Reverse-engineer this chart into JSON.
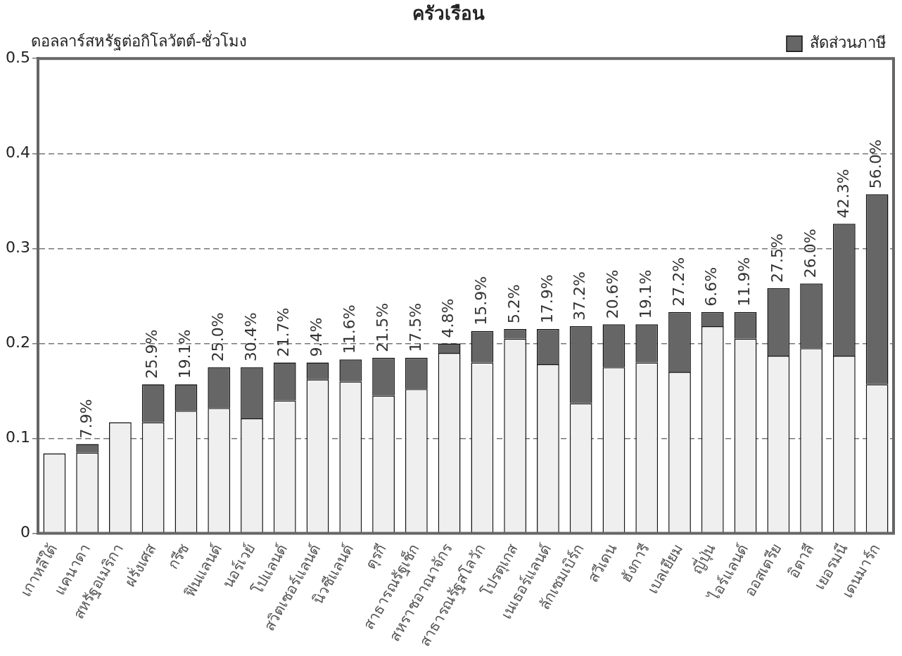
{
  "chart_data": {
    "type": "bar",
    "title": "ครัวเรือน",
    "ylabel": "ดอลลาร์สหรัฐต่อกิโลวัตต์-ชั่วโมง",
    "categories": [
      "เกาหลีใต้",
      "แคนาดา",
      "สหรัฐอเมริกา",
      "ฝรั่งเศส",
      "กรีซ",
      "ฟินแลนด์",
      "นอร์เวย์",
      "โปแลนด์",
      "สวิตเซอร์แลนด์",
      "นิวซีแลนด์",
      "ตุรกี",
      "สาธารณรัฐเช็ก",
      "สหราชอาณาจักร",
      "สาธารณรัฐสโลวัก",
      "โปรตุเกส",
      "เนเธอร์แลนด์",
      "ลักเซมเบิร์ก",
      "สวีเดน",
      "ฮังการี",
      "เบลเยียม",
      "ญี่ปุ่น",
      "ไอร์แลนด์",
      "ออสเตรีย",
      "อิตาลี",
      "เยอรมนี",
      "เดนมาร์ก"
    ],
    "stacked": true,
    "series": [
      {
        "color": "#efefef",
        "values": [
          0.084,
          0.085,
          0.117,
          0.117,
          0.129,
          0.132,
          0.121,
          0.14,
          0.162,
          0.16,
          0.145,
          0.152,
          0.19,
          0.18,
          0.205,
          0.178,
          0.137,
          0.175,
          0.18,
          0.17,
          0.218,
          0.205,
          0.187,
          0.195,
          0.187,
          0.157
        ]
      },
      {
        "name": "สัดส่วนภาษี",
        "color": "#666666",
        "values": [
          null,
          0.009,
          null,
          0.04,
          0.028,
          0.043,
          0.054,
          0.04,
          0.018,
          0.023,
          0.04,
          0.033,
          0.01,
          0.033,
          0.01,
          0.037,
          0.081,
          0.045,
          0.04,
          0.063,
          0.015,
          0.028,
          0.071,
          0.068,
          0.139,
          0.2
        ]
      }
    ],
    "ylim": [
      0,
      0.5
    ],
    "yticks": [
      0,
      0.1,
      0.2,
      0.3,
      0.4,
      0.5
    ],
    "grid": "y",
    "legend": "top right",
    "annotations": [
      {
        "text": "7.9%",
        "x": "แคนาดา",
        "y": 0.094
      },
      {
        "text": "25.9%",
        "x": "ฝรั่งเศส",
        "y": 0.157
      },
      {
        "text": "19.1%",
        "x": "กรีซ",
        "y": 0.157
      },
      {
        "text": "25.0%",
        "x": "ฟินแลนด์",
        "y": 0.175
      },
      {
        "text": "30.4%",
        "x": "นอร์เวย์",
        "y": 0.175
      },
      {
        "text": "21.7%",
        "x": "โปแลนด์",
        "y": 0.18
      },
      {
        "text": "9.4%",
        "x": "สวิตเซอร์แลนด์",
        "y": 0.18
      },
      {
        "text": "11.6%",
        "x": "นิวซีแลนด์",
        "y": 0.183
      },
      {
        "text": "21.5%",
        "x": "ตุรกี",
        "y": 0.185
      },
      {
        "text": "17.5%",
        "x": "สาธารณรัฐเช็ก",
        "y": 0.185
      },
      {
        "text": "4.8%",
        "x": "สหราชอาณาจักร",
        "y": 0.2
      },
      {
        "text": "15.9%",
        "x": "สาธารณรัฐสโลวัก",
        "y": 0.213
      },
      {
        "text": "5.2%",
        "x": "โปรตุเกส",
        "y": 0.215
      },
      {
        "text": "17.9%",
        "x": "เนเธอร์แลนด์",
        "y": 0.215
      },
      {
        "text": "37.2%",
        "x": "ลักเซมเบิร์ก",
        "y": 0.218
      },
      {
        "text": "20.6%",
        "x": "สวีเดน",
        "y": 0.22
      },
      {
        "text": "19.1%",
        "x": "ฮังการี",
        "y": 0.22
      },
      {
        "text": "27.2%",
        "x": "เบลเยียม",
        "y": 0.233
      },
      {
        "text": "6.6%",
        "x": "ญี่ปุ่น",
        "y": 0.233
      },
      {
        "text": "11.9%",
        "x": "ไอร์แลนด์",
        "y": 0.233
      },
      {
        "text": "27.5%",
        "x": "ออสเตรีย",
        "y": 0.258
      },
      {
        "text": "26.0%",
        "x": "อิตาลี",
        "y": 0.263
      },
      {
        "text": "42.3%",
        "x": "เยอรมนี",
        "y": 0.326
      },
      {
        "text": "56.0%",
        "x": "เดนมาร์ก",
        "y": 0.357
      }
    ]
  }
}
